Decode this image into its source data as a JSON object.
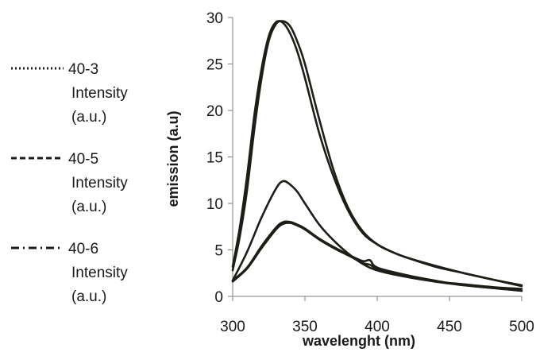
{
  "chart_data": {
    "type": "line",
    "title": "",
    "xlabel": "wavelenght (nm)",
    "ylabel": "emission (a.u)",
    "xlim": [
      300,
      500
    ],
    "ylim": [
      0,
      30
    ],
    "xticks": [
      300,
      350,
      400,
      450,
      500
    ],
    "yticks": [
      0,
      5,
      10,
      15,
      20,
      25,
      30
    ],
    "grid": false,
    "legend_position": "left",
    "series": [
      {
        "name": "40-3 Intensity (a.u.)",
        "legend_lines": [
          "40-3",
          "Intensity",
          "(a.u.)"
        ],
        "dash": "dotted",
        "x": [
          300,
          310,
          320,
          330,
          335,
          340,
          345,
          350,
          360,
          370,
          380,
          390,
          395,
          400,
          420,
          440,
          460,
          480,
          500
        ],
        "y": [
          1.6,
          3.0,
          5.2,
          7.2,
          7.8,
          7.9,
          7.6,
          7.2,
          6.1,
          5.2,
          4.4,
          3.6,
          3.4,
          3.0,
          2.2,
          1.6,
          1.2,
          0.9,
          0.6
        ]
      },
      {
        "name": "40-5 Intensity (a.u.)",
        "legend_lines": [
          "40-5",
          "Intensity",
          "(a.u.)"
        ],
        "dash": "dashed",
        "x": [
          300,
          305,
          310,
          315,
          320,
          325,
          330,
          335,
          340,
          345,
          350,
          360,
          370,
          380,
          390,
          400,
          410,
          420,
          440,
          460,
          480,
          500
        ],
        "y": [
          3.2,
          7.5,
          13.0,
          19.5,
          24.5,
          28.0,
          29.5,
          29.4,
          28.2,
          26.2,
          23.5,
          17.5,
          12.8,
          9.2,
          6.8,
          5.6,
          4.8,
          4.2,
          3.2,
          2.5,
          1.8,
          1.2
        ]
      },
      {
        "name": "40-6 Intensity (a.u.)",
        "legend_lines": [
          "40-6",
          "Intensity",
          "(a.u.)"
        ],
        "dash": "dashdot",
        "x": [
          300,
          310,
          320,
          330,
          335,
          340,
          345,
          350,
          360,
          370,
          380,
          390,
          395,
          400,
          420,
          440,
          460,
          480,
          500
        ],
        "y": [
          1.7,
          3.1,
          5.4,
          7.4,
          8.0,
          8.0,
          7.7,
          7.3,
          6.2,
          5.3,
          4.5,
          3.8,
          3.9,
          3.1,
          2.3,
          1.7,
          1.2,
          0.9,
          0.6
        ]
      },
      {
        "name": "",
        "dash": "solid",
        "x": [
          300,
          305,
          310,
          315,
          320,
          325,
          330,
          335,
          340,
          345,
          350,
          360,
          370,
          380,
          390,
          400,
          410,
          420,
          440,
          460,
          480,
          500
        ],
        "y": [
          2.8,
          6.5,
          11.5,
          18.0,
          23.5,
          27.5,
          29.3,
          29.6,
          29.0,
          27.3,
          25.0,
          19.0,
          13.5,
          9.5,
          7.0,
          5.6,
          4.8,
          4.2,
          3.3,
          2.5,
          1.8,
          1.1
        ]
      },
      {
        "name": "",
        "dash": "solid",
        "x": [
          300,
          310,
          320,
          330,
          335,
          340,
          345,
          350,
          360,
          370,
          380,
          390,
          400,
          420,
          440,
          460,
          480,
          500
        ],
        "y": [
          1.7,
          4.8,
          8.5,
          11.6,
          12.4,
          12.0,
          11.2,
          10.0,
          7.7,
          6.0,
          4.6,
          3.5,
          2.8,
          2.1,
          1.6,
          1.3,
          1.0,
          0.8
        ]
      }
    ]
  }
}
